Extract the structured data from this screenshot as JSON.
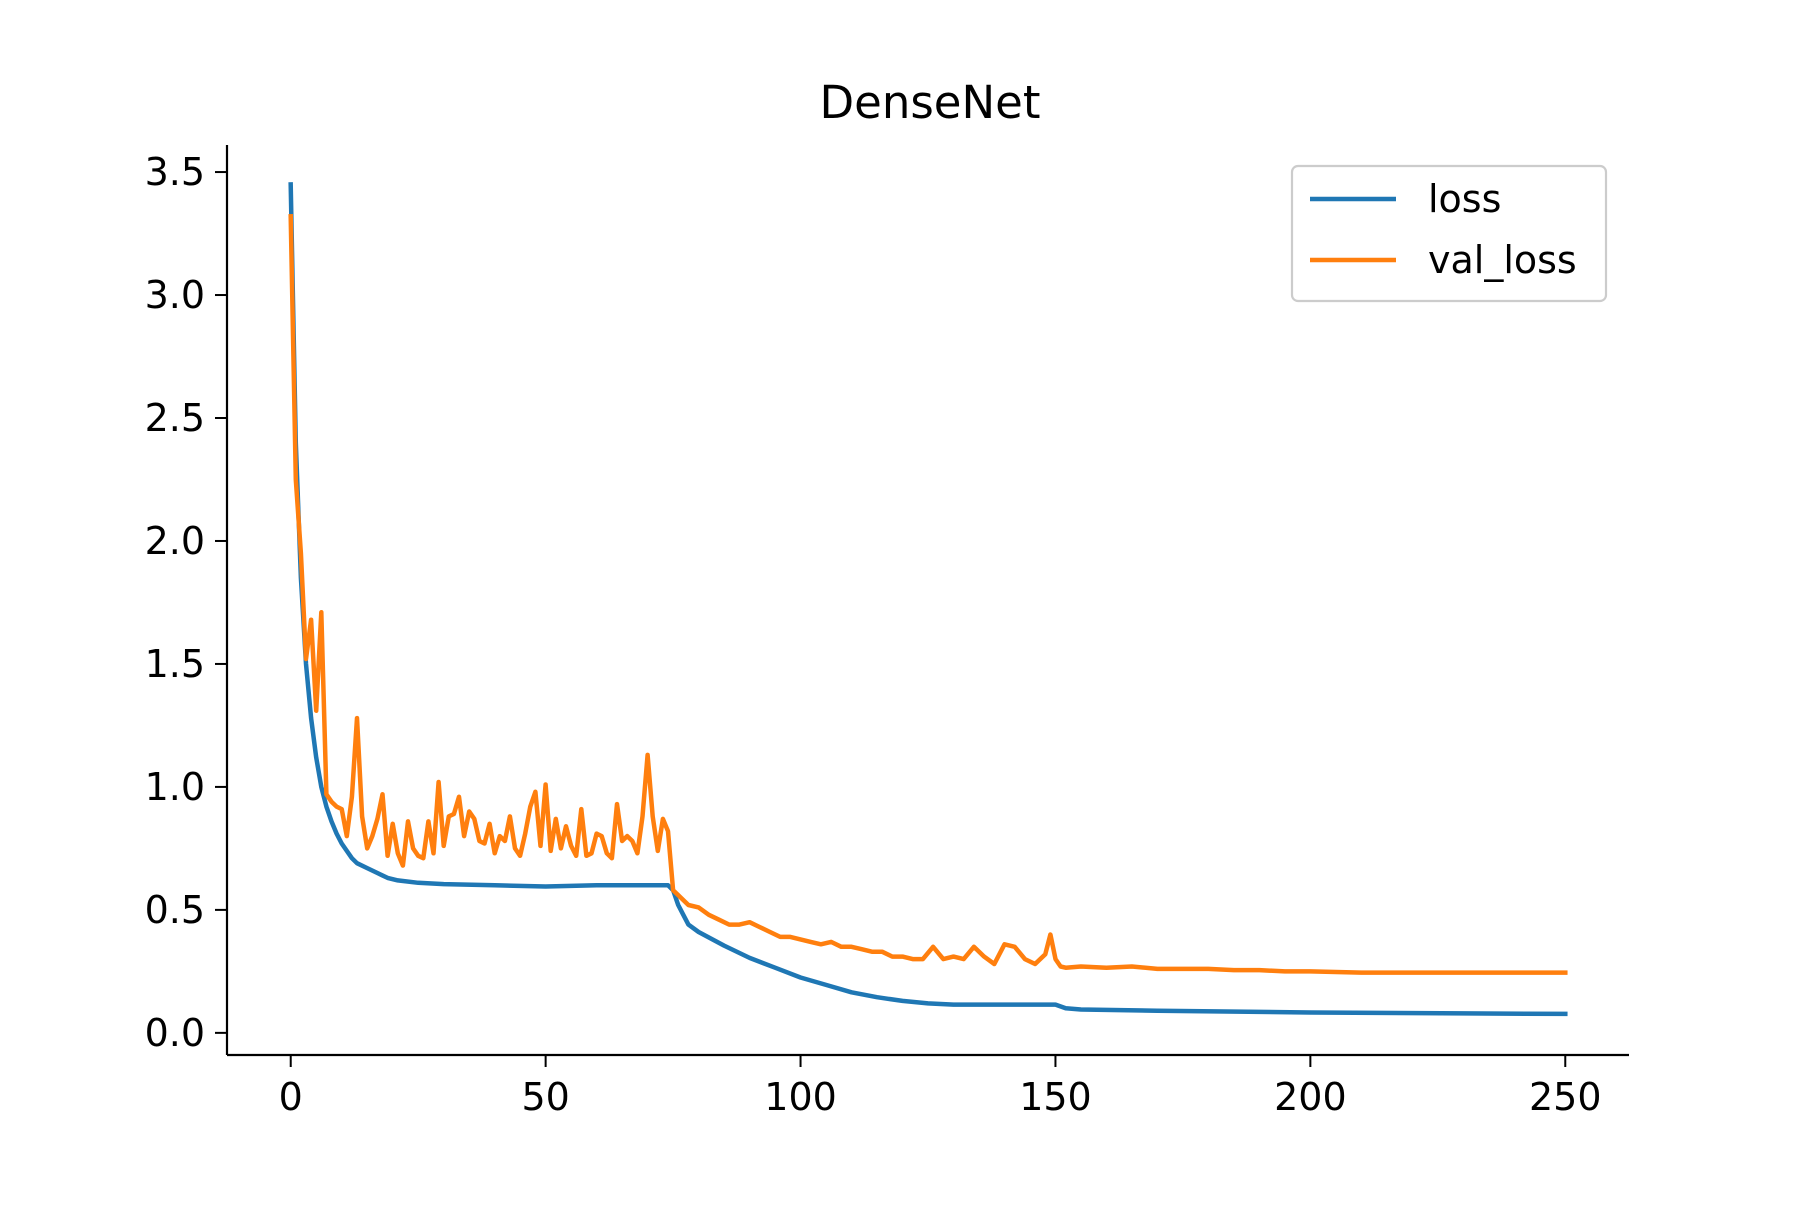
{
  "chart_data": {
    "type": "line",
    "title": "DenseNet",
    "xlabel": "",
    "ylabel": "",
    "xlim": [
      -12.5,
      262.5
    ],
    "ylim": [
      -0.09,
      3.61
    ],
    "xticks": [
      0,
      50,
      100,
      150,
      200,
      250
    ],
    "yticks": [
      0.0,
      0.5,
      1.0,
      1.5,
      2.0,
      2.5,
      3.0,
      3.5
    ],
    "xtick_labels": [
      "0",
      "50",
      "100",
      "150",
      "200",
      "250"
    ],
    "ytick_labels": [
      "0.0",
      "0.5",
      "1.0",
      "1.5",
      "2.0",
      "2.5",
      "3.0",
      "3.5"
    ],
    "grid": false,
    "legend_position": "top-right",
    "series": [
      {
        "name": "loss",
        "color": "#1f77b4",
        "points": [
          [
            0,
            3.45
          ],
          [
            1,
            2.4
          ],
          [
            2,
            1.85
          ],
          [
            3,
            1.5
          ],
          [
            4,
            1.28
          ],
          [
            5,
            1.12
          ],
          [
            6,
            1.0
          ],
          [
            7,
            0.92
          ],
          [
            8,
            0.86
          ],
          [
            9,
            0.81
          ],
          [
            10,
            0.77
          ],
          [
            11,
            0.74
          ],
          [
            12,
            0.71
          ],
          [
            13,
            0.69
          ],
          [
            15,
            0.67
          ],
          [
            17,
            0.65
          ],
          [
            19,
            0.63
          ],
          [
            21,
            0.62
          ],
          [
            25,
            0.61
          ],
          [
            30,
            0.605
          ],
          [
            40,
            0.6
          ],
          [
            50,
            0.595
          ],
          [
            60,
            0.6
          ],
          [
            70,
            0.6
          ],
          [
            74,
            0.6
          ],
          [
            75,
            0.58
          ],
          [
            76,
            0.52
          ],
          [
            77,
            0.48
          ],
          [
            78,
            0.44
          ],
          [
            80,
            0.41
          ],
          [
            85,
            0.355
          ],
          [
            90,
            0.305
          ],
          [
            95,
            0.265
          ],
          [
            100,
            0.225
          ],
          [
            105,
            0.195
          ],
          [
            110,
            0.165
          ],
          [
            115,
            0.145
          ],
          [
            120,
            0.13
          ],
          [
            125,
            0.12
          ],
          [
            130,
            0.115
          ],
          [
            135,
            0.115
          ],
          [
            140,
            0.115
          ],
          [
            145,
            0.115
          ],
          [
            150,
            0.115
          ],
          [
            152,
            0.1
          ],
          [
            155,
            0.095
          ],
          [
            170,
            0.09
          ],
          [
            200,
            0.083
          ],
          [
            230,
            0.079
          ],
          [
            250,
            0.077
          ]
        ]
      },
      {
        "name": "val_loss",
        "color": "#ff7f0e",
        "points": [
          [
            0,
            3.32
          ],
          [
            1,
            2.25
          ],
          [
            2,
            1.95
          ],
          [
            3,
            1.52
          ],
          [
            4,
            1.68
          ],
          [
            5,
            1.31
          ],
          [
            6,
            1.71
          ],
          [
            7,
            0.97
          ],
          [
            8,
            0.94
          ],
          [
            9,
            0.92
          ],
          [
            10,
            0.91
          ],
          [
            11,
            0.8
          ],
          [
            12,
            0.96
          ],
          [
            13,
            1.28
          ],
          [
            14,
            0.88
          ],
          [
            15,
            0.75
          ],
          [
            16,
            0.8
          ],
          [
            17,
            0.87
          ],
          [
            18,
            0.97
          ],
          [
            19,
            0.72
          ],
          [
            20,
            0.85
          ],
          [
            21,
            0.73
          ],
          [
            22,
            0.68
          ],
          [
            23,
            0.86
          ],
          [
            24,
            0.75
          ],
          [
            25,
            0.72
          ],
          [
            26,
            0.71
          ],
          [
            27,
            0.86
          ],
          [
            28,
            0.73
          ],
          [
            29,
            1.02
          ],
          [
            30,
            0.76
          ],
          [
            31,
            0.88
          ],
          [
            32,
            0.89
          ],
          [
            33,
            0.96
          ],
          [
            34,
            0.8
          ],
          [
            35,
            0.9
          ],
          [
            36,
            0.87
          ],
          [
            37,
            0.78
          ],
          [
            38,
            0.77
          ],
          [
            39,
            0.85
          ],
          [
            40,
            0.73
          ],
          [
            41,
            0.8
          ],
          [
            42,
            0.78
          ],
          [
            43,
            0.88
          ],
          [
            44,
            0.75
          ],
          [
            45,
            0.72
          ],
          [
            46,
            0.81
          ],
          [
            47,
            0.92
          ],
          [
            48,
            0.98
          ],
          [
            49,
            0.76
          ],
          [
            50,
            1.01
          ],
          [
            51,
            0.74
          ],
          [
            52,
            0.87
          ],
          [
            53,
            0.75
          ],
          [
            54,
            0.84
          ],
          [
            55,
            0.76
          ],
          [
            56,
            0.72
          ],
          [
            57,
            0.91
          ],
          [
            58,
            0.72
          ],
          [
            59,
            0.73
          ],
          [
            60,
            0.81
          ],
          [
            61,
            0.8
          ],
          [
            62,
            0.73
          ],
          [
            63,
            0.71
          ],
          [
            64,
            0.93
          ],
          [
            65,
            0.78
          ],
          [
            66,
            0.8
          ],
          [
            67,
            0.78
          ],
          [
            68,
            0.73
          ],
          [
            69,
            0.88
          ],
          [
            70,
            1.13
          ],
          [
            71,
            0.88
          ],
          [
            72,
            0.74
          ],
          [
            73,
            0.87
          ],
          [
            74,
            0.82
          ],
          [
            75,
            0.58
          ],
          [
            76,
            0.56
          ],
          [
            78,
            0.52
          ],
          [
            80,
            0.51
          ],
          [
            82,
            0.48
          ],
          [
            84,
            0.46
          ],
          [
            86,
            0.44
          ],
          [
            88,
            0.44
          ],
          [
            90,
            0.45
          ],
          [
            92,
            0.43
          ],
          [
            94,
            0.41
          ],
          [
            96,
            0.39
          ],
          [
            98,
            0.39
          ],
          [
            100,
            0.38
          ],
          [
            102,
            0.37
          ],
          [
            104,
            0.36
          ],
          [
            106,
            0.37
          ],
          [
            108,
            0.35
          ],
          [
            110,
            0.35
          ],
          [
            112,
            0.34
          ],
          [
            114,
            0.33
          ],
          [
            116,
            0.33
          ],
          [
            118,
            0.31
          ],
          [
            120,
            0.31
          ],
          [
            122,
            0.3
          ],
          [
            124,
            0.3
          ],
          [
            126,
            0.35
          ],
          [
            128,
            0.3
          ],
          [
            130,
            0.31
          ],
          [
            132,
            0.3
          ],
          [
            134,
            0.35
          ],
          [
            136,
            0.31
          ],
          [
            138,
            0.28
          ],
          [
            140,
            0.36
          ],
          [
            142,
            0.35
          ],
          [
            144,
            0.3
          ],
          [
            146,
            0.28
          ],
          [
            148,
            0.32
          ],
          [
            149,
            0.4
          ],
          [
            150,
            0.3
          ],
          [
            151,
            0.27
          ],
          [
            152,
            0.265
          ],
          [
            155,
            0.27
          ],
          [
            160,
            0.265
          ],
          [
            165,
            0.27
          ],
          [
            170,
            0.26
          ],
          [
            175,
            0.26
          ],
          [
            180,
            0.26
          ],
          [
            185,
            0.255
          ],
          [
            190,
            0.255
          ],
          [
            195,
            0.25
          ],
          [
            200,
            0.25
          ],
          [
            210,
            0.245
          ],
          [
            220,
            0.245
          ],
          [
            230,
            0.245
          ],
          [
            240,
            0.245
          ],
          [
            250,
            0.245
          ]
        ]
      }
    ]
  }
}
